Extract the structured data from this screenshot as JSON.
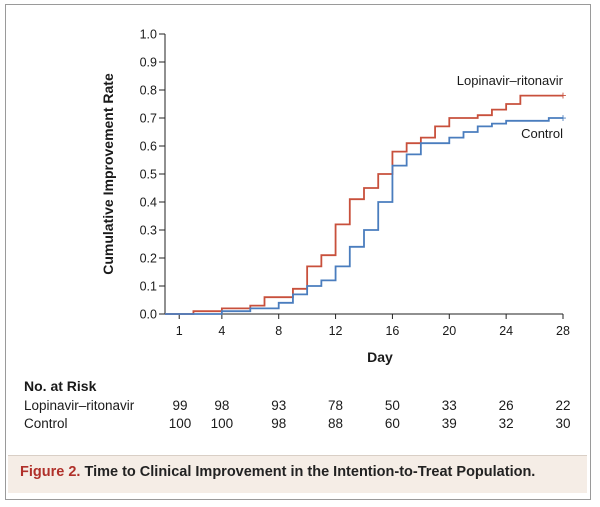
{
  "chart_data": {
    "type": "line",
    "step": true,
    "title": "",
    "xlabel": "Day",
    "ylabel": "Cumulative Improvement Rate",
    "xlim": [
      0,
      28
    ],
    "ylim": [
      0,
      1.0
    ],
    "x_ticks": [
      1,
      4,
      8,
      12,
      16,
      20,
      24,
      28
    ],
    "y_ticks": [
      0.0,
      0.1,
      0.2,
      0.3,
      0.4,
      0.5,
      0.6,
      0.7,
      0.8,
      0.9,
      1.0
    ],
    "y_tick_labels": [
      "0.0",
      "0.1",
      "0.2",
      "0.3",
      "0.4",
      "0.5",
      "0.6",
      "0.7",
      "0.8",
      "0.9",
      "1.0"
    ],
    "grid": false,
    "series": [
      {
        "name": "Lopinavir–ritonavir",
        "color": "#c8503c",
        "x": [
          0,
          2,
          4,
          6,
          7,
          9,
          10,
          11,
          12,
          13,
          14,
          15,
          16,
          17,
          18,
          19,
          20,
          22,
          23,
          24,
          25,
          28
        ],
        "y": [
          0.0,
          0.01,
          0.02,
          0.03,
          0.06,
          0.09,
          0.17,
          0.21,
          0.32,
          0.41,
          0.45,
          0.5,
          0.58,
          0.61,
          0.63,
          0.67,
          0.7,
          0.71,
          0.73,
          0.75,
          0.78,
          0.78
        ]
      },
      {
        "name": "Control",
        "color": "#4a7dbe",
        "x": [
          0,
          4,
          6,
          8,
          9,
          10,
          11,
          12,
          13,
          14,
          15,
          16,
          17,
          18,
          20,
          21,
          22,
          23,
          24,
          27,
          28
        ],
        "y": [
          0.0,
          0.01,
          0.02,
          0.04,
          0.07,
          0.1,
          0.12,
          0.17,
          0.24,
          0.3,
          0.4,
          0.53,
          0.57,
          0.61,
          0.63,
          0.65,
          0.67,
          0.68,
          0.69,
          0.7,
          0.7
        ]
      }
    ]
  },
  "risk_table": {
    "title": "No. at Risk",
    "days": [
      1,
      4,
      8,
      12,
      16,
      20,
      24,
      28
    ],
    "rows": [
      {
        "label": "Lopinavir–ritonavir",
        "values": [
          "99",
          "98",
          "93",
          "78",
          "50",
          "33",
          "26",
          "22"
        ]
      },
      {
        "label": "Control",
        "values": [
          "100",
          "100",
          "98",
          "88",
          "60",
          "39",
          "32",
          "30"
        ]
      }
    ]
  },
  "caption": {
    "figure_number": "Figure 2.",
    "text": "Time to Clinical Improvement in the Intention-to-Treat Population."
  }
}
